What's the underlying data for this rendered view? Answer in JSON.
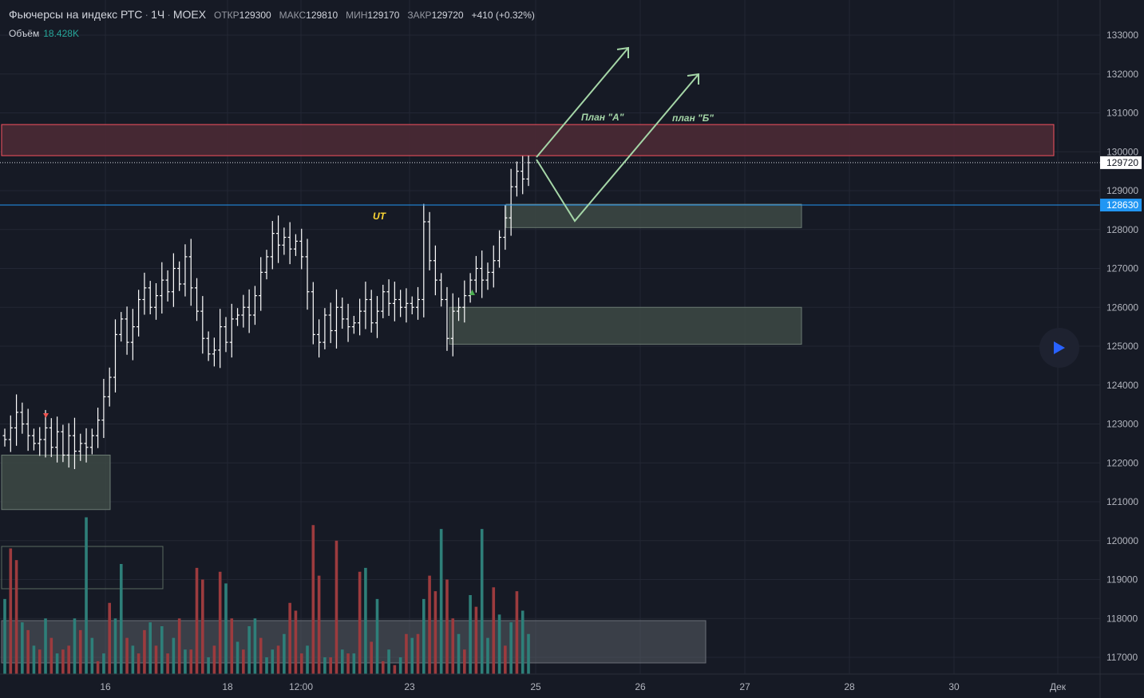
{
  "header": {
    "symbol": "Фьючерсы на индекс РТС",
    "interval": "1Ч",
    "exchange": "MOEX",
    "open_label": "ОТКР",
    "open": "129300",
    "high_label": "МАКС",
    "high": "129810",
    "low_label": "МИН",
    "low": "129170",
    "close_label": "ЗАКР",
    "close": "129720",
    "change": "+410 (+0.32%)"
  },
  "volume_legend": {
    "label": "Объём",
    "value": "18.428K"
  },
  "colors": {
    "background": "#161a25",
    "up": "#26a69a",
    "down": "#ef5350",
    "bar": "#ffffff",
    "line_blue": "#2196f3",
    "arrow": "#a5d6a7",
    "resistance_fill": "#4a2a35",
    "resistance_border": "#f7525f",
    "support_fill": "#3d4a45"
  },
  "annotations": {
    "plan_a": "План \"А\"",
    "plan_b": "план \"Б\"",
    "ut": "UT"
  },
  "chart_data": {
    "type": "ohlc",
    "title": "Фьючерсы на индекс РТС · 1Ч · MOEX",
    "y_axis": {
      "ticks": [
        133000,
        132000,
        131000,
        130000,
        129000,
        128000,
        127000,
        126000,
        125000,
        124000,
        123000,
        122000,
        121000,
        120000,
        119000,
        118000,
        117000
      ],
      "range": [
        116700,
        133700
      ],
      "position": "right"
    },
    "x_axis": {
      "ticks": [
        "16",
        "18",
        "12:00",
        "23",
        "25",
        "26",
        "27",
        "28",
        "30",
        "Дек"
      ]
    },
    "price_labels": [
      {
        "value": 129720,
        "label": "129720",
        "style": "last-price"
      },
      {
        "value": 128630,
        "label": "128630",
        "style": "horizontal-line"
      }
    ],
    "zones": [
      {
        "name": "resistance",
        "from": 129900,
        "to": 130700
      },
      {
        "name": "support-upper",
        "from": 128050,
        "to": 128650
      },
      {
        "name": "support-lower",
        "from": 125050,
        "to": 126000
      },
      {
        "name": "support-left",
        "from": 120800,
        "to": 122200
      }
    ],
    "close_path": [
      122600,
      122900,
      123300,
      123000,
      122700,
      122500,
      122600,
      122900,
      122400,
      122800,
      122200,
      122700,
      122300,
      122500,
      122400,
      122700,
      123100,
      123700,
      124200,
      125300,
      125700,
      125100,
      125500,
      126200,
      126500,
      126000,
      126300,
      126700,
      126400,
      127000,
      126600,
      127300,
      126500,
      125900,
      125200,
      124800,
      124900,
      125500,
      125100,
      125700,
      125800,
      126000,
      125800,
      126300,
      126900,
      127300,
      127900,
      127600,
      127800,
      127500,
      127700,
      127300,
      126400,
      125300,
      125100,
      125800,
      125400,
      126000,
      125700,
      125500,
      125600,
      125900,
      126200,
      125600,
      125900,
      126400,
      126100,
      126200,
      126000,
      126100,
      126000,
      126200,
      128200,
      127200,
      126700,
      126200,
      125200,
      125900,
      126000,
      126300,
      126700,
      127000,
      126700,
      126900,
      127200,
      127800,
      128300,
      129100,
      129500,
      129300,
      129720
    ],
    "volumes": [
      118500,
      119800,
      119500,
      117900,
      117700,
      117300,
      117200,
      118000,
      117500,
      117100,
      117200,
      117300,
      118000,
      117700,
      120600,
      117500,
      116900,
      117100,
      118400,
      118000,
      119400,
      117500,
      117300,
      117100,
      117700,
      117900,
      117300,
      117800,
      117100,
      117500,
      118000,
      117200,
      117200,
      119300,
      119000,
      117000,
      117300,
      119200,
      118900,
      118000,
      117400,
      117200,
      117800,
      118000,
      117500,
      117000,
      117200,
      117300,
      117600,
      118400,
      118200,
      117100,
      117300,
      120400,
      119100,
      117000,
      117000,
      120000,
      117200,
      117100,
      117100,
      119200,
      119300,
      117400,
      118500,
      116900,
      117200,
      116800,
      117000,
      117600,
      117500,
      117600,
      118500,
      119100,
      118700,
      120300,
      119000,
      118000,
      117600,
      117200,
      118600,
      118300,
      120300,
      117500,
      118800,
      118100,
      117300,
      117900,
      118700,
      118200,
      117600
    ],
    "volume_up": [
      true,
      false,
      false,
      true,
      false,
      true,
      false,
      true,
      false,
      true,
      false,
      false,
      true,
      false,
      true,
      true,
      false,
      true,
      false,
      true,
      true,
      false,
      true,
      false,
      false,
      true,
      false,
      true,
      false,
      true,
      false,
      true,
      false,
      false,
      false,
      true,
      false,
      false,
      true,
      false,
      true,
      false,
      true,
      true,
      false,
      true,
      true,
      false,
      true,
      false,
      false,
      false,
      true,
      false,
      false,
      true,
      false,
      false,
      true,
      false,
      true,
      false,
      true,
      false,
      true,
      false,
      true,
      false,
      true,
      false,
      true,
      false,
      true,
      false,
      false,
      true,
      false,
      false,
      true,
      false,
      true,
      false,
      true,
      true,
      false,
      true,
      false,
      true,
      false,
      true,
      true
    ]
  }
}
